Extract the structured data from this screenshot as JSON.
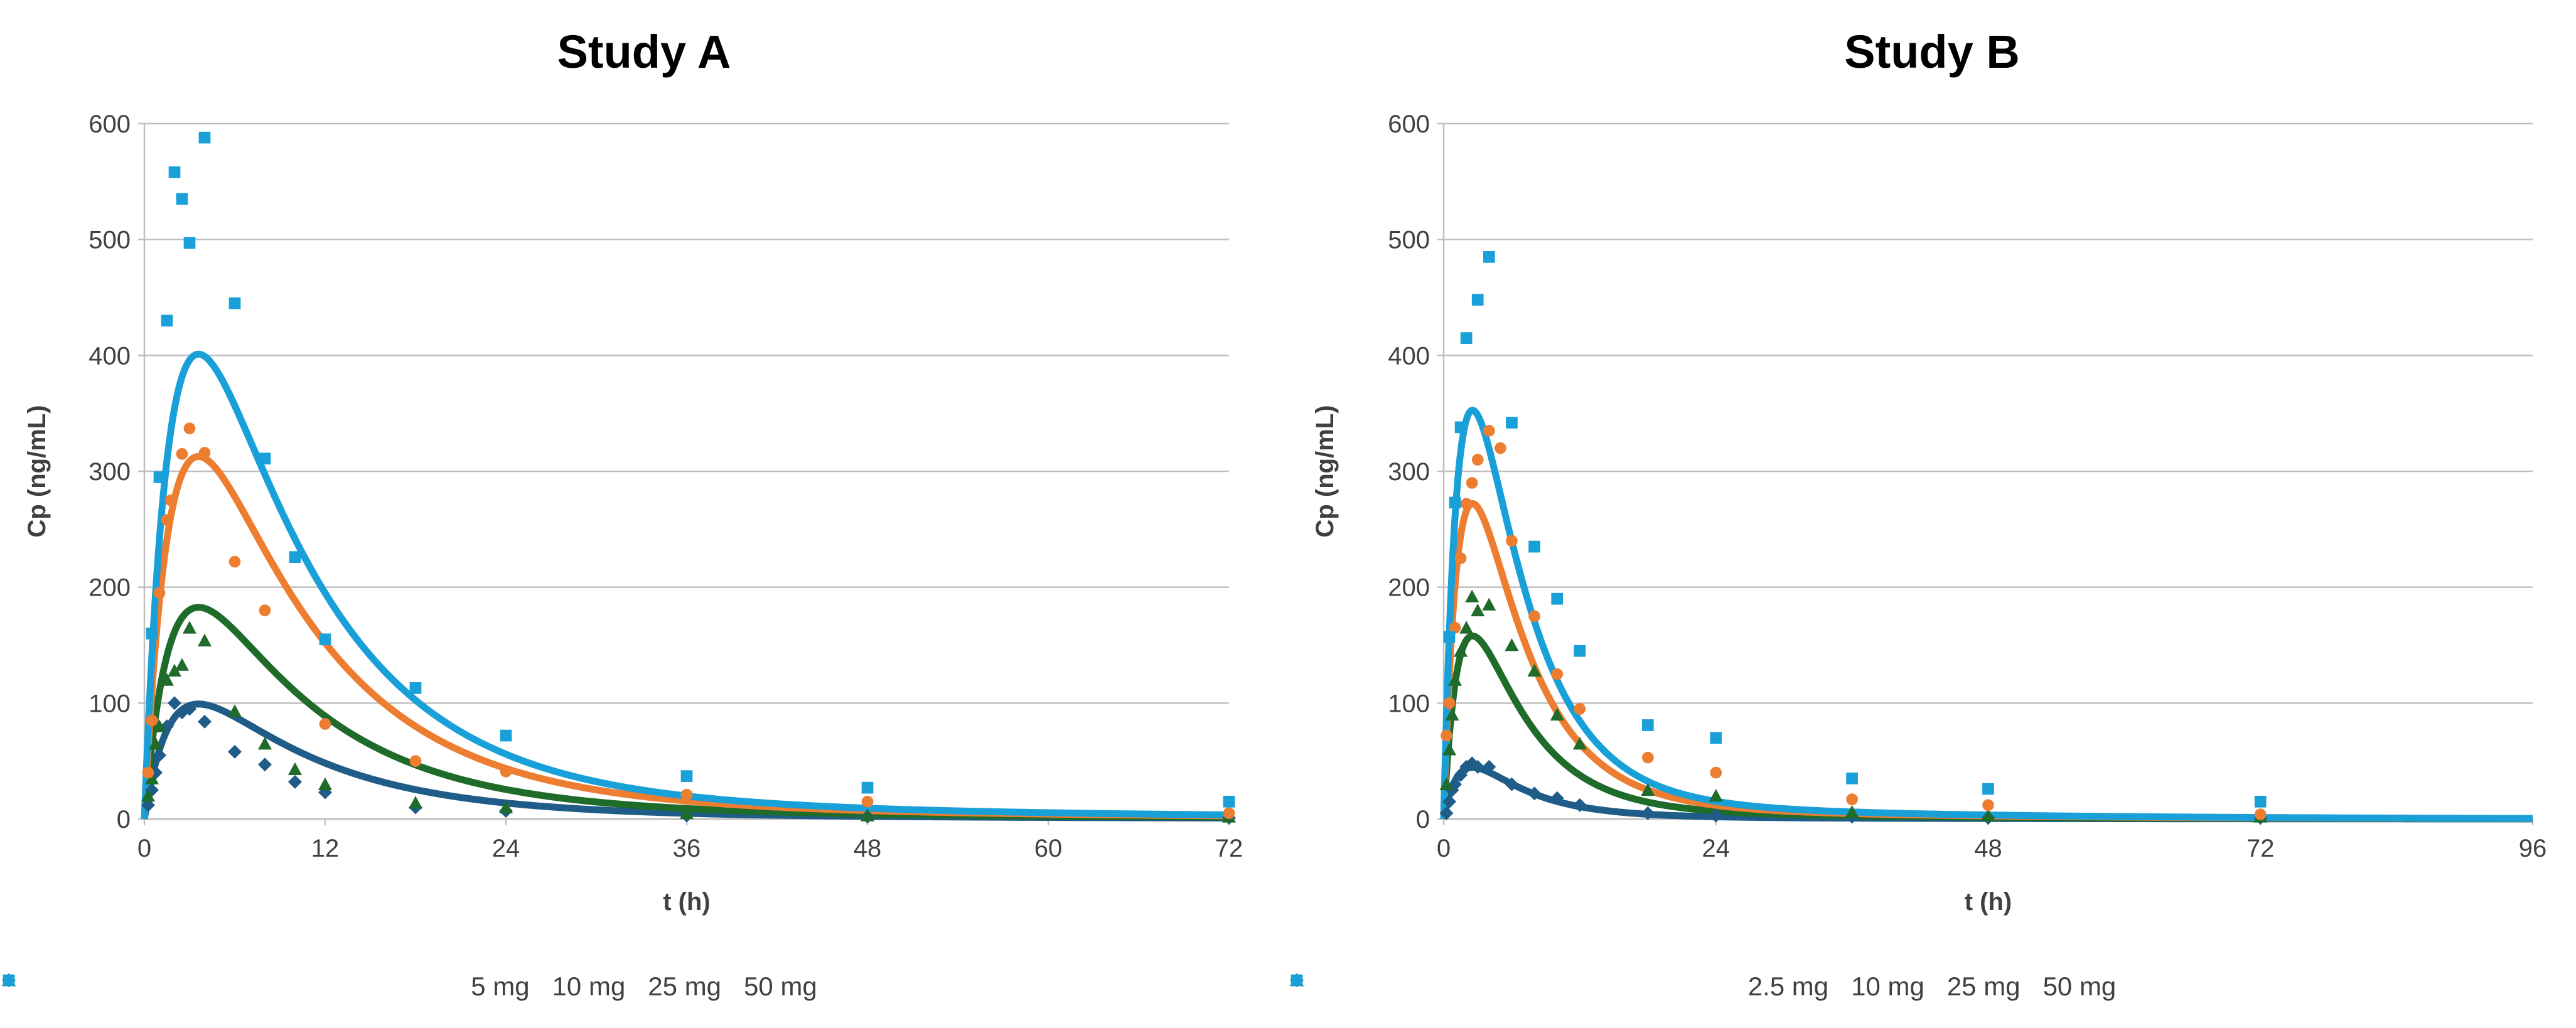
{
  "chart_data": [
    {
      "type": "scatter",
      "title": "Study A",
      "xlabel": "t (h)",
      "ylabel": "Cp (ng/mL)",
      "xlim": [
        0,
        72
      ],
      "ylim": [
        0,
        600
      ],
      "xticks": [
        0,
        12,
        24,
        36,
        48,
        60,
        72
      ],
      "yticks": [
        0,
        100,
        200,
        300,
        400,
        500,
        600
      ],
      "grid": "horizontal",
      "legend_position": "bottom",
      "series": [
        {
          "name": "5 mg",
          "marker": "diamond",
          "color": "#1F5C87",
          "points": [
            [
              0.25,
              12
            ],
            [
              0.5,
              25
            ],
            [
              0.75,
              40
            ],
            [
              1,
              55
            ],
            [
              1.5,
              80
            ],
            [
              2,
              100
            ],
            [
              2.5,
              92
            ],
            [
              3,
              95
            ],
            [
              4,
              84
            ],
            [
              6,
              58
            ],
            [
              8,
              47
            ],
            [
              10,
              32
            ],
            [
              12,
              23
            ],
            [
              18,
              10
            ],
            [
              24,
              7
            ],
            [
              36,
              3
            ],
            [
              48,
              2
            ],
            [
              72,
              1
            ]
          ],
          "fit_params": {
            "A": 183,
            "ka": 0.55,
            "ke": 0.12,
            "tail_frac": 0.04,
            "tail_ke": 0.03
          }
        },
        {
          "name": "10 mg",
          "marker": "triangle",
          "color": "#1E6B2A",
          "points": [
            [
              0.25,
              20
            ],
            [
              0.5,
              35
            ],
            [
              0.75,
              65
            ],
            [
              1,
              80
            ],
            [
              1.5,
              120
            ],
            [
              2,
              128
            ],
            [
              2.5,
              133
            ],
            [
              3,
              165
            ],
            [
              4,
              154
            ],
            [
              6,
              93
            ],
            [
              8,
              65
            ],
            [
              10,
              43
            ],
            [
              12,
              30
            ],
            [
              18,
              14
            ],
            [
              24,
              10
            ],
            [
              36,
              5
            ],
            [
              48,
              3
            ],
            [
              72,
              2
            ]
          ],
          "fit_params": {
            "A": 337,
            "ka": 0.55,
            "ke": 0.12,
            "tail_frac": 0.04,
            "tail_ke": 0.03
          }
        },
        {
          "name": "25 mg",
          "marker": "circle",
          "color": "#ED7D31",
          "points": [
            [
              0.25,
              40
            ],
            [
              0.5,
              85
            ],
            [
              1,
              195
            ],
            [
              1.5,
              258
            ],
            [
              1.75,
              275
            ],
            [
              2.5,
              315
            ],
            [
              3,
              337
            ],
            [
              4,
              316
            ],
            [
              6,
              222
            ],
            [
              8,
              180
            ],
            [
              12,
              82
            ],
            [
              18,
              50
            ],
            [
              24,
              41
            ],
            [
              36,
              21
            ],
            [
              48,
              15
            ],
            [
              72,
              5
            ]
          ],
          "fit_params": {
            "A": 577,
            "ka": 0.55,
            "ke": 0.12,
            "tail_frac": 0.04,
            "tail_ke": 0.03
          }
        },
        {
          "name": "50 mg",
          "marker": "square",
          "color": "#1AA0D8",
          "points": [
            [
              0.5,
              160
            ],
            [
              1,
              295
            ],
            [
              1.5,
              430
            ],
            [
              2,
              558
            ],
            [
              2.5,
              535
            ],
            [
              3,
              497
            ],
            [
              4,
              588
            ],
            [
              6,
              445
            ],
            [
              8,
              311
            ],
            [
              10,
              226
            ],
            [
              12,
              155
            ],
            [
              18,
              113
            ],
            [
              24,
              72
            ],
            [
              36,
              37
            ],
            [
              48,
              27
            ],
            [
              72,
              15
            ]
          ],
          "fit_params": {
            "A": 740,
            "ka": 0.55,
            "ke": 0.12,
            "tail_frac": 0.04,
            "tail_ke": 0.03
          }
        }
      ]
    },
    {
      "type": "scatter",
      "title": "Study B",
      "xlabel": "t (h)",
      "ylabel": "Cp (ng/mL)",
      "xlim": [
        0,
        96
      ],
      "ylim": [
        0,
        600
      ],
      "xticks": [
        0,
        24,
        48,
        72,
        96
      ],
      "yticks": [
        0,
        100,
        200,
        300,
        400,
        500,
        600
      ],
      "grid": "horizontal",
      "legend_position": "bottom",
      "series": [
        {
          "name": "2.5 mg",
          "marker": "diamond",
          "color": "#1F5C87",
          "points": [
            [
              0.25,
              5
            ],
            [
              0.5,
              15
            ],
            [
              0.75,
              25
            ],
            [
              1,
              30
            ],
            [
              1.5,
              38
            ],
            [
              2,
              45
            ],
            [
              2.5,
              48
            ],
            [
              3,
              45
            ],
            [
              4,
              45
            ],
            [
              6,
              30
            ],
            [
              8,
              22
            ],
            [
              10,
              18
            ],
            [
              12,
              12
            ],
            [
              18,
              5
            ],
            [
              24,
              3
            ],
            [
              36,
              2
            ],
            [
              48,
              1
            ],
            [
              72,
              1
            ]
          ],
          "fit_params": {
            "A": 98,
            "ka": 0.7,
            "ke": 0.2,
            "tail_frac": 0.03,
            "tail_ke": 0.04
          }
        },
        {
          "name": "10 mg",
          "marker": "triangle",
          "color": "#1E6B2A",
          "points": [
            [
              0.25,
              30
            ],
            [
              0.5,
              60
            ],
            [
              0.75,
              90
            ],
            [
              1,
              120
            ],
            [
              1.5,
              145
            ],
            [
              2,
              165
            ],
            [
              2.5,
              192
            ],
            [
              3,
              180
            ],
            [
              4,
              185
            ],
            [
              6,
              150
            ],
            [
              8,
              128
            ],
            [
              10,
              90
            ],
            [
              12,
              65
            ],
            [
              18,
              25
            ],
            [
              24,
              20
            ],
            [
              36,
              6
            ],
            [
              48,
              3
            ],
            [
              72,
              2
            ]
          ],
          "fit_params": {
            "A": 347,
            "ka": 0.7,
            "ke": 0.2,
            "tail_frac": 0.03,
            "tail_ke": 0.04
          }
        },
        {
          "name": "25 mg",
          "marker": "circle",
          "color": "#ED7D31",
          "points": [
            [
              0.25,
              72
            ],
            [
              0.5,
              100
            ],
            [
              1,
              165
            ],
            [
              1.5,
              225
            ],
            [
              2,
              272
            ],
            [
              2.5,
              290
            ],
            [
              3,
              310
            ],
            [
              4,
              335
            ],
            [
              5,
              320
            ],
            [
              6,
              240
            ],
            [
              8,
              175
            ],
            [
              10,
              125
            ],
            [
              12,
              95
            ],
            [
              18,
              53
            ],
            [
              24,
              40
            ],
            [
              36,
              17
            ],
            [
              48,
              12
            ],
            [
              72,
              4
            ]
          ],
          "fit_params": {
            "A": 598,
            "ka": 0.7,
            "ke": 0.2,
            "tail_frac": 0.03,
            "tail_ke": 0.04
          }
        },
        {
          "name": "50 mg",
          "marker": "square",
          "color": "#1AA0D8",
          "points": [
            [
              0.5,
              157
            ],
            [
              1,
              273
            ],
            [
              1.5,
              338
            ],
            [
              2,
              415
            ],
            [
              3,
              448
            ],
            [
              4,
              485
            ],
            [
              6,
              342
            ],
            [
              8,
              235
            ],
            [
              10,
              190
            ],
            [
              12,
              145
            ],
            [
              18,
              81
            ],
            [
              24,
              70
            ],
            [
              36,
              35
            ],
            [
              48,
              26
            ],
            [
              72,
              15
            ]
          ],
          "fit_params": {
            "A": 775,
            "ka": 0.7,
            "ke": 0.2,
            "tail_frac": 0.03,
            "tail_ke": 0.04
          }
        }
      ]
    }
  ]
}
